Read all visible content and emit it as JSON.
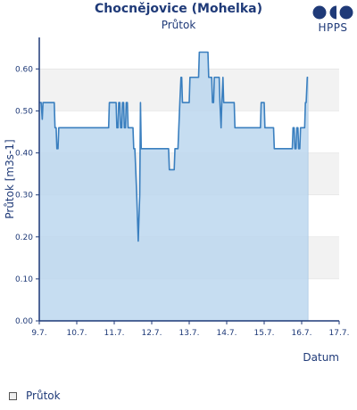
{
  "header": {
    "title": "Chocnějovice (Mohelka)",
    "subtitle": "Průtok"
  },
  "logo": {
    "text": "HPPS"
  },
  "legend": {
    "label": "Průtok"
  },
  "colors": {
    "axis": "#1f3a78",
    "line": "#3a7fbf",
    "fill": "#bcd7ee",
    "band": "#f2f2f2",
    "grid": "#dddddd"
  },
  "chart_data": {
    "type": "area",
    "xlabel": "Datum",
    "ylabel": "Průtok [m3s-1]",
    "x_domain": [
      9.0,
      17.0
    ],
    "x_ticks": [
      "9.7.",
      "10.7.",
      "11.7.",
      "12.7.",
      "13.7.",
      "14.7.",
      "15.7.",
      "16.7.",
      "17.7."
    ],
    "ylim": [
      0,
      0.6
    ],
    "y_ticks": [
      "0.00",
      "0.10",
      "0.20",
      "0.30",
      "0.40",
      "0.50",
      "0.60"
    ],
    "grid": "horizontal bands",
    "legend_position": "bottom-left",
    "series": [
      {
        "name": "Průtok",
        "points": [
          [
            9.0,
            0.52
          ],
          [
            9.05,
            0.52
          ],
          [
            9.08,
            0.48
          ],
          [
            9.1,
            0.52
          ],
          [
            9.4,
            0.52
          ],
          [
            9.42,
            0.46
          ],
          [
            9.45,
            0.46
          ],
          [
            9.47,
            0.41
          ],
          [
            9.5,
            0.41
          ],
          [
            9.52,
            0.46
          ],
          [
            10.85,
            0.46
          ],
          [
            10.87,
            0.52
          ],
          [
            11.05,
            0.52
          ],
          [
            11.07,
            0.46
          ],
          [
            11.1,
            0.46
          ],
          [
            11.12,
            0.52
          ],
          [
            11.15,
            0.52
          ],
          [
            11.17,
            0.46
          ],
          [
            11.2,
            0.46
          ],
          [
            11.22,
            0.52
          ],
          [
            11.25,
            0.52
          ],
          [
            11.27,
            0.46
          ],
          [
            11.3,
            0.46
          ],
          [
            11.32,
            0.52
          ],
          [
            11.35,
            0.52
          ],
          [
            11.37,
            0.46
          ],
          [
            11.45,
            0.46
          ],
          [
            11.5,
            0.46
          ],
          [
            11.52,
            0.41
          ],
          [
            11.55,
            0.41
          ],
          [
            11.6,
            0.3
          ],
          [
            11.64,
            0.19
          ],
          [
            11.68,
            0.3
          ],
          [
            11.7,
            0.52
          ],
          [
            11.72,
            0.41
          ],
          [
            12.45,
            0.41
          ],
          [
            12.47,
            0.36
          ],
          [
            12.6,
            0.36
          ],
          [
            12.62,
            0.41
          ],
          [
            12.7,
            0.41
          ],
          [
            12.75,
            0.52
          ],
          [
            12.78,
            0.58
          ],
          [
            12.8,
            0.58
          ],
          [
            12.82,
            0.52
          ],
          [
            12.9,
            0.52
          ],
          [
            13.0,
            0.52
          ],
          [
            13.02,
            0.58
          ],
          [
            13.25,
            0.58
          ],
          [
            13.27,
            0.64
          ],
          [
            13.5,
            0.64
          ],
          [
            13.52,
            0.58
          ],
          [
            13.6,
            0.58
          ],
          [
            13.62,
            0.52
          ],
          [
            13.65,
            0.52
          ],
          [
            13.67,
            0.58
          ],
          [
            13.75,
            0.58
          ],
          [
            13.8,
            0.58
          ],
          [
            13.82,
            0.52
          ],
          [
            13.85,
            0.46
          ],
          [
            13.87,
            0.52
          ],
          [
            13.9,
            0.58
          ],
          [
            13.92,
            0.52
          ],
          [
            14.2,
            0.52
          ],
          [
            14.22,
            0.46
          ],
          [
            14.9,
            0.46
          ],
          [
            14.92,
            0.52
          ],
          [
            15.0,
            0.52
          ],
          [
            15.02,
            0.46
          ],
          [
            15.25,
            0.46
          ],
          [
            15.27,
            0.41
          ],
          [
            15.75,
            0.41
          ],
          [
            15.77,
            0.46
          ],
          [
            15.8,
            0.46
          ],
          [
            15.82,
            0.41
          ],
          [
            15.85,
            0.41
          ],
          [
            15.87,
            0.46
          ],
          [
            15.9,
            0.46
          ],
          [
            15.92,
            0.41
          ],
          [
            15.95,
            0.41
          ],
          [
            15.97,
            0.46
          ],
          [
            16.08,
            0.46
          ],
          [
            16.1,
            0.52
          ],
          [
            16.12,
            0.52
          ],
          [
            16.15,
            0.58
          ],
          [
            16.17,
            0.58
          ]
        ]
      }
    ]
  }
}
